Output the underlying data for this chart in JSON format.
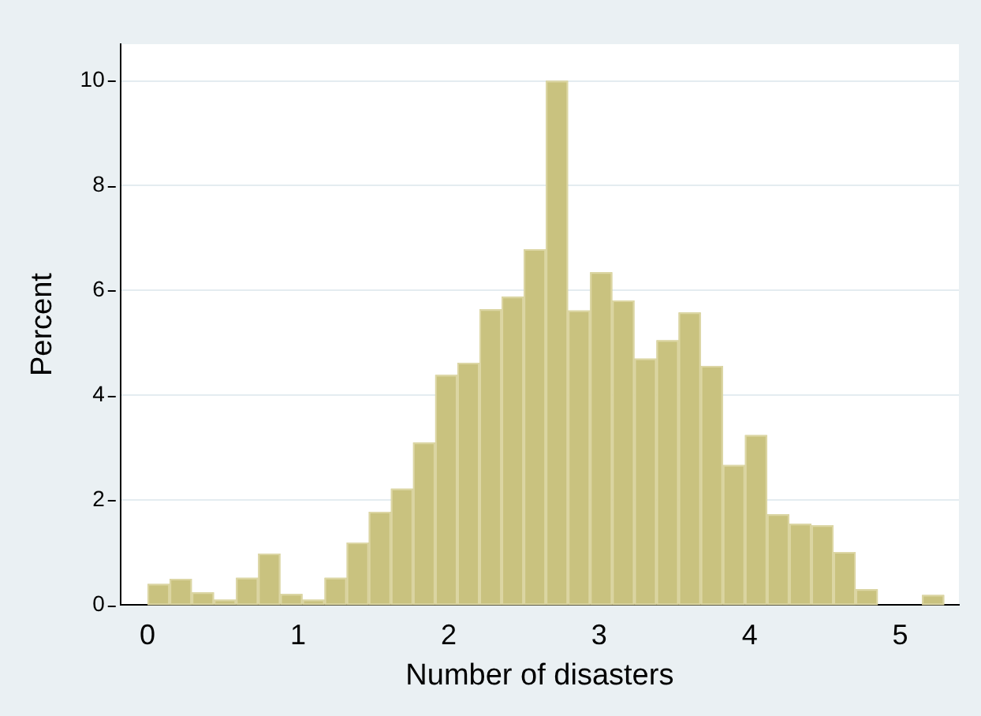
{
  "chart_data": {
    "type": "histogram",
    "xlabel": "Number of disasters",
    "ylabel": "Percent",
    "bins": [
      0,
      0.147,
      0.294,
      0.441,
      0.588,
      0.735,
      0.882,
      1.029,
      1.176,
      1.323,
      1.47,
      1.617,
      1.764,
      1.911,
      2.058,
      2.205,
      2.352,
      2.499,
      2.646,
      2.793,
      2.94,
      3.087,
      3.234,
      3.381,
      3.528,
      3.675,
      3.822,
      3.969,
      4.116,
      4.263,
      4.41,
      4.557,
      4.704,
      4.851,
      4.998,
      5.145,
      5.292
    ],
    "values": [
      0.4,
      0.5,
      0.24,
      0.1,
      0.52,
      0.98,
      0.21,
      0.1,
      0.52,
      1.19,
      1.78,
      2.22,
      3.1,
      4.39,
      4.62,
      5.64,
      5.88,
      6.79,
      10,
      5.62,
      6.35,
      5.81,
      4.7,
      5.05,
      5.58,
      4.56,
      2.67,
      3.24,
      1.73,
      1.55,
      1.52,
      1.01,
      0.3,
      0,
      0,
      0.19
    ],
    "color": "#c9c27f",
    "xlim": [
      -0.18,
      5.39
    ],
    "xticks": [
      0,
      1,
      2,
      3,
      4,
      5
    ],
    "ylim": [
      0,
      10.7
    ],
    "yticks": [
      0,
      2,
      4,
      6,
      8,
      10
    ],
    "grid": "y"
  }
}
